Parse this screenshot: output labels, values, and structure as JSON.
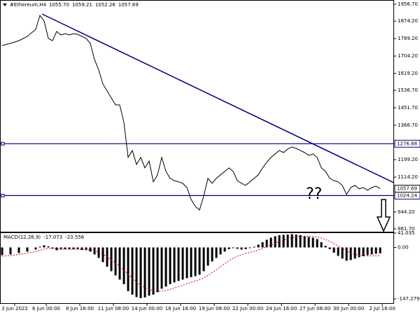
{
  "chart_data": [
    {
      "type": "line",
      "title": "#Ethereum,H4",
      "ohlc_labels": [
        "1055.70",
        "1059.21",
        "1052.26",
        "1057.69"
      ],
      "x": [
        -21,
        -17,
        -13,
        -9,
        -5,
        -3,
        -1,
        1,
        3,
        5,
        7,
        9,
        11,
        13,
        15,
        17,
        19,
        21,
        23,
        25,
        27,
        29,
        31,
        33,
        35,
        37,
        39,
        41,
        43,
        45,
        47,
        49,
        51,
        53,
        55,
        57,
        59,
        61,
        63,
        65,
        67,
        69,
        71,
        73,
        75,
        77,
        79,
        81,
        83,
        85,
        87,
        89,
        91,
        93,
        95,
        97,
        99,
        101,
        103,
        105,
        107,
        109,
        111,
        113,
        115,
        117,
        119,
        121,
        123,
        125,
        127,
        129,
        131,
        133,
        135,
        137,
        139,
        141,
        143,
        145,
        147,
        149,
        151,
        153,
        155,
        157,
        159
      ],
      "values": [
        1755,
        1766,
        1779,
        1800,
        1834,
        1902,
        1875,
        1790,
        1779,
        1824,
        1807,
        1813,
        1807,
        1813,
        1810,
        1800,
        1790,
        1766,
        1687,
        1636,
        1568,
        1534,
        1500,
        1466,
        1466,
        1380,
        1210,
        1244,
        1176,
        1210,
        1159,
        1193,
        1091,
        1125,
        1210,
        1142,
        1108,
        1097,
        1091,
        1084,
        1063,
        1005,
        971,
        954,
        1022,
        1108,
        1084,
        1108,
        1125,
        1142,
        1159,
        1142,
        1097,
        1084,
        1074,
        1091,
        1108,
        1125,
        1159,
        1186,
        1210,
        1227,
        1244,
        1234,
        1251,
        1261,
        1254,
        1244,
        1234,
        1220,
        1227,
        1210,
        1159,
        1142,
        1108,
        1097,
        1091,
        1074,
        1029,
        1063,
        1074,
        1057,
        1063,
        1050,
        1063,
        1070,
        1058
      ],
      "color": "#000000",
      "xlim": [
        -22,
        165.3
      ],
      "ylim": [
        851.5,
        1977.2
      ],
      "yticks": [
        {
          "value": 1956.7,
          "label": "1956.70"
        },
        {
          "value": 1874.2,
          "label": "1874.20"
        },
        {
          "value": 1789.2,
          "label": "1789.20"
        },
        {
          "value": 1704.2,
          "label": "1704.20"
        },
        {
          "value": 1619.2,
          "label": "1619.20"
        },
        {
          "value": 1536.7,
          "label": "1536.70"
        },
        {
          "value": 1451.7,
          "label": "1451.70"
        },
        {
          "value": 1366.7,
          "label": "1366.70"
        },
        {
          "value": 1199.2,
          "label": "1199.20"
        },
        {
          "value": 1114.2,
          "label": "1114.20"
        },
        {
          "value": 944.2,
          "label": "944.20"
        },
        {
          "value": 861.7,
          "label": "861.70"
        }
      ],
      "hlines": [
        1276.88,
        1024.24
      ],
      "hline_color": "#000080",
      "last_price": 1057.69,
      "trendline": {
        "x": [
          -2,
          165.3
        ],
        "y": [
          1909,
          1088
        ],
        "color": "#000080"
      },
      "annotation": "??"
    },
    {
      "type": "macd",
      "title": "MACD(12,26,9)",
      "indicator_values": [
        -17.073,
        -23.556
      ],
      "x": [
        -21,
        -17,
        -13,
        -9,
        -5,
        -3,
        -1,
        1,
        3,
        5,
        7,
        9,
        11,
        13,
        15,
        17,
        19,
        21,
        23,
        25,
        27,
        29,
        31,
        33,
        35,
        37,
        39,
        41,
        43,
        45,
        47,
        49,
        51,
        53,
        55,
        57,
        59,
        61,
        63,
        65,
        67,
        69,
        71,
        73,
        75,
        77,
        79,
        81,
        83,
        85,
        87,
        89,
        91,
        93,
        95,
        97,
        99,
        101,
        103,
        105,
        107,
        109,
        111,
        113,
        115,
        117,
        119,
        121,
        123,
        125,
        127,
        129,
        131,
        133,
        135,
        137,
        139,
        141,
        143,
        145,
        147,
        149,
        151,
        153,
        155,
        157,
        159
      ],
      "series": [
        {
          "color": "#000000",
          "values": [
            -22,
            -20,
            -16,
            -12,
            -6,
            2,
            6,
            3,
            -4,
            -8,
            -6,
            -5,
            -6,
            -5,
            -6,
            -7,
            -8,
            -12,
            -20,
            -30,
            -42,
            -55,
            -68,
            -80,
            -92,
            -105,
            -125,
            -135,
            -142,
            -145,
            -143,
            -138,
            -135,
            -128,
            -118,
            -112,
            -105,
            -100,
            -96,
            -92,
            -88,
            -85,
            -82,
            -78,
            -68,
            -52,
            -40,
            -30,
            -20,
            -12,
            -5,
            -2,
            -4,
            -6,
            -5,
            -2,
            2,
            8,
            15,
            22,
            28,
            32,
            35,
            36,
            37,
            38,
            37,
            35,
            32,
            30,
            28,
            24,
            15,
            5,
            -5,
            -15,
            -24,
            -32,
            -38,
            -36,
            -32,
            -28,
            -25,
            -22,
            -20,
            -18,
            -17.073
          ]
        },
        {
          "color": "#e00000",
          "values": [
            -25,
            -23,
            -20,
            -16,
            -12,
            -8,
            -5,
            -3,
            -3,
            -4,
            -5,
            -5,
            -5,
            -5,
            -5,
            -6,
            -6,
            -7,
            -10,
            -14,
            -20,
            -27,
            -35,
            -44,
            -54,
            -64,
            -76,
            -88,
            -99,
            -108,
            -115,
            -120,
            -124,
            -126,
            -125,
            -123,
            -120,
            -116,
            -112,
            -108,
            -104,
            -100,
            -96,
            -92,
            -87,
            -80,
            -72,
            -64,
            -55,
            -46,
            -38,
            -31,
            -25,
            -21,
            -17,
            -14,
            -11,
            -7,
            -3,
            2,
            7,
            12,
            17,
            21,
            25,
            28,
            30,
            32,
            32,
            32,
            31,
            30,
            27,
            23,
            17,
            11,
            4,
            -3,
            -10,
            -16,
            -20,
            -23,
            -24,
            -24,
            -24,
            -24,
            -23.556
          ]
        }
      ],
      "xlim": [
        -22,
        165.3
      ],
      "ylim": [
        -147.279,
        41.035
      ],
      "yticks": [
        41.035,
        {
          "value": 0,
          "label": "0.00"
        },
        -147.279
      ],
      "xticks": [
        {
          "value": -15,
          "label": "3 Jun 2022"
        },
        {
          "value": 0,
          "label": "6 Jun 00:00"
        },
        {
          "value": 16,
          "label": "8 Jun 16:00"
        },
        {
          "value": 32,
          "label": "11 Jun 08:00"
        },
        {
          "value": 48,
          "label": "14 Jun 00:00"
        },
        {
          "value": 64,
          "label": "16 Jun 16:00"
        },
        {
          "value": 80,
          "label": "19 Jun 08:00"
        },
        {
          "value": 96,
          "label": "22 Jun 00:00"
        },
        {
          "value": 112,
          "label": "24 Jun 16:00"
        },
        {
          "value": 128,
          "label": "27 Jun 08:00"
        },
        {
          "value": 144,
          "label": "30 Jun 00:00"
        },
        {
          "value": 160,
          "label": "2 Jul 16:00"
        }
      ]
    }
  ]
}
